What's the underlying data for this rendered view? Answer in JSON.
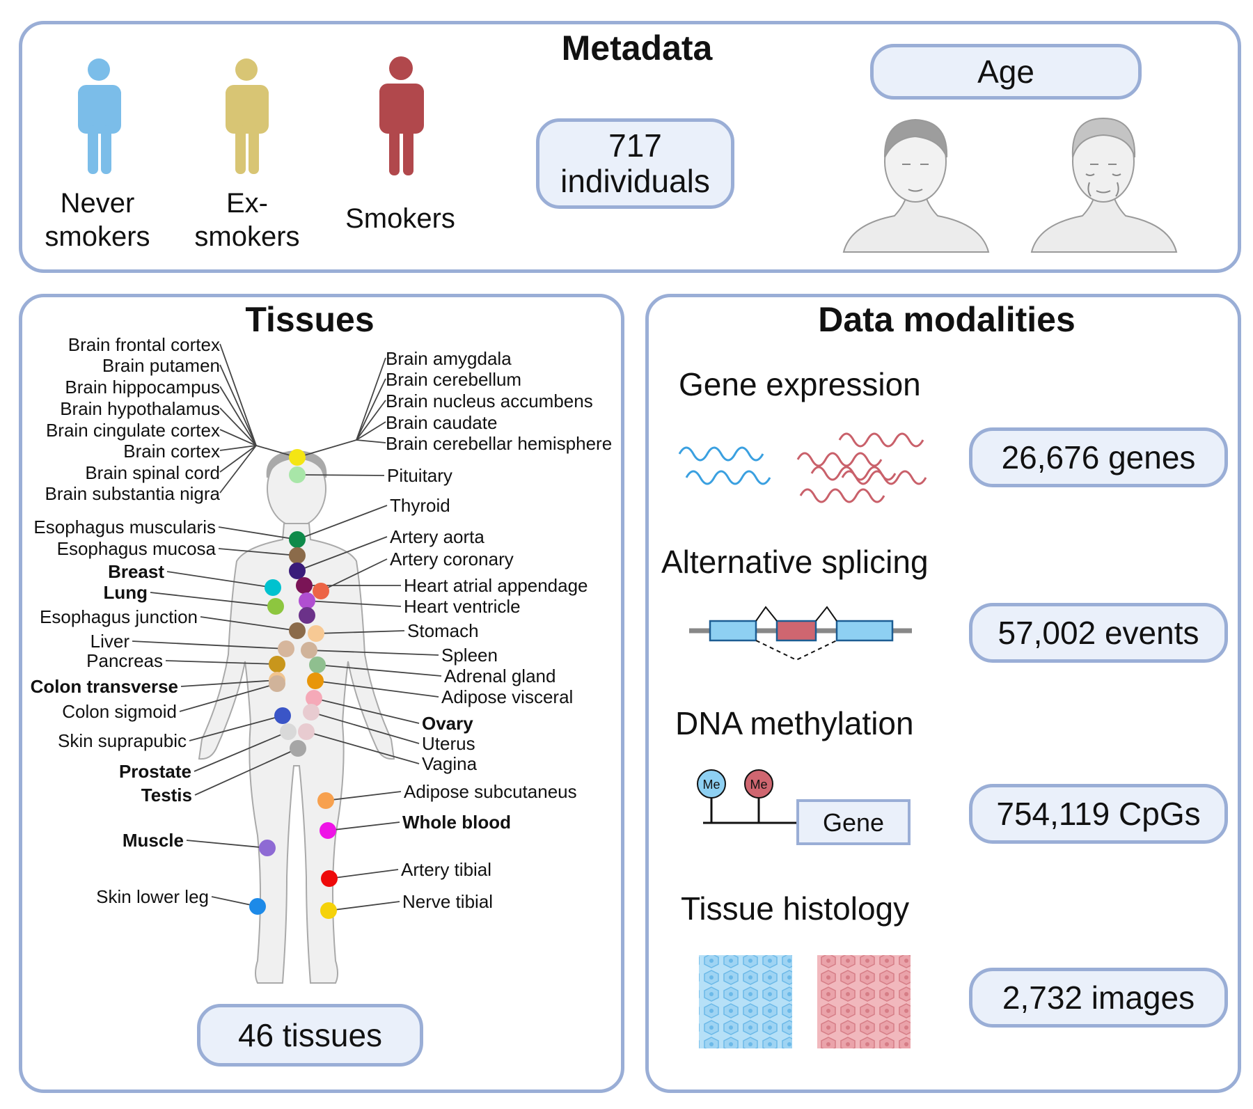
{
  "metadata": {
    "title": "Metadata",
    "groups": [
      {
        "label": "Never smokers",
        "color": "#7bbde9"
      },
      {
        "label": "Ex-smokers",
        "color": "#d8c574"
      },
      {
        "label": "Smokers",
        "color": "#b1484c"
      }
    ],
    "never_label_lines": [
      "Never",
      "smokers"
    ],
    "ex_label_lines": [
      "Ex-",
      "smokers"
    ],
    "smokers_label": "Smokers",
    "individuals_lines": [
      "717",
      "individuals"
    ],
    "age_label": "Age"
  },
  "tissues": {
    "title": "Tissues",
    "count_label": "46 tissues",
    "left_labels": [
      {
        "text": "Brain frontal cortex",
        "bold": false
      },
      {
        "text": "Brain putamen",
        "bold": false
      },
      {
        "text": "Brain hippocampus",
        "bold": false
      },
      {
        "text": "Brain hypothalamus",
        "bold": false
      },
      {
        "text": "Brain cingulate cortex",
        "bold": false
      },
      {
        "text": "Brain cortex",
        "bold": false
      },
      {
        "text": "Brain spinal cord",
        "bold": false
      },
      {
        "text": "Brain substantia nigra",
        "bold": false
      },
      {
        "text": "Esophagus muscularis",
        "bold": false
      },
      {
        "text": "Esophagus mucosa",
        "bold": false
      },
      {
        "text": "Breast",
        "bold": true
      },
      {
        "text": "Lung",
        "bold": true
      },
      {
        "text": "Esophagus junction",
        "bold": false
      },
      {
        "text": "Liver",
        "bold": false
      },
      {
        "text": "Pancreas",
        "bold": false
      },
      {
        "text": "Colon transverse",
        "bold": true
      },
      {
        "text": "Colon sigmoid",
        "bold": false
      },
      {
        "text": "Skin suprapubic",
        "bold": false
      },
      {
        "text": "Prostate",
        "bold": true
      },
      {
        "text": "Testis",
        "bold": true
      },
      {
        "text": "Muscle",
        "bold": true
      },
      {
        "text": "Skin lower leg",
        "bold": false
      }
    ],
    "right_labels": [
      {
        "text": "Brain amygdala",
        "bold": false
      },
      {
        "text": "Brain cerebellum",
        "bold": false
      },
      {
        "text": "Brain nucleus accumbens",
        "bold": false
      },
      {
        "text": "Brain caudate",
        "bold": false
      },
      {
        "text": "Brain cerebellar hemisphere",
        "bold": false
      },
      {
        "text": "Pituitary",
        "bold": false
      },
      {
        "text": "Thyroid",
        "bold": false
      },
      {
        "text": "Artery aorta",
        "bold": false
      },
      {
        "text": "Artery coronary",
        "bold": false
      },
      {
        "text": "Heart atrial appendage",
        "bold": false
      },
      {
        "text": "Heart ventricle",
        "bold": false
      },
      {
        "text": "Stomach",
        "bold": false
      },
      {
        "text": "Spleen",
        "bold": false
      },
      {
        "text": "Adrenal gland",
        "bold": false
      },
      {
        "text": "Adipose visceral",
        "bold": false
      },
      {
        "text": "Ovary",
        "bold": true
      },
      {
        "text": "Uterus",
        "bold": false
      },
      {
        "text": "Vagina",
        "bold": false
      },
      {
        "text": "Adipose subcutaneus",
        "bold": false
      },
      {
        "text": "Whole blood",
        "bold": true
      },
      {
        "text": "Artery tibial",
        "bold": false
      },
      {
        "text": "Nerve tibial",
        "bold": false
      }
    ],
    "dot_colors": [
      "#f4e514",
      "#a8e6a8",
      "#0f8a4a",
      "#8b6b4a",
      "#3a1c7a",
      "#00c2cf",
      "#ec6446",
      "#7a1456",
      "#8dc63f",
      "#b04fd1",
      "#6b3289",
      "#8b6b4a",
      "#f7c994",
      "#d6b69c",
      "#d0b39a",
      "#c8961c",
      "#8fbf8f",
      "#f1c48f",
      "#e8960a",
      "#d0b39a",
      "#f5a9b8",
      "#3a55c7",
      "#e8cbd0",
      "#d9d9d9",
      "#e8cbd0",
      "#a6a6a6",
      "#f7a14f",
      "#ee14e6",
      "#8e6ad4",
      "#ee0a0a",
      "#1d8ae8",
      "#f5d20a"
    ]
  },
  "modalities": {
    "title": "Data modalities",
    "items": [
      {
        "name": "Gene expression",
        "count": "26,676 genes"
      },
      {
        "name": "Alternative splicing",
        "count": "57,002 events"
      },
      {
        "name": "DNA methylation",
        "count": "754,119 CpGs"
      },
      {
        "name": "Tissue histology",
        "count": "2,732 images"
      }
    ],
    "me_label": "Me",
    "gene_label": "Gene",
    "colors": {
      "blue": "#3aa0e0",
      "red": "#c9606a",
      "blue_fill": "#8ed0f2",
      "red_fill": "#cf6670"
    }
  }
}
